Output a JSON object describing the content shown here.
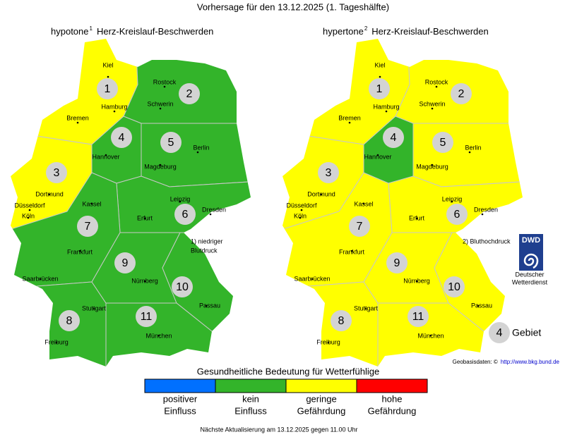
{
  "title": "Vorhersage für den 13.12.2025 (1. Tageshälfte)",
  "cities": [
    "Kiel",
    "Rostock",
    "Hamburg",
    "Schwerin",
    "Bremen",
    "Hannover",
    "Berlin",
    "Magdeburg",
    "Dortmund",
    "Düsseldorf",
    "Köln",
    "Kassel",
    "Leipzig",
    "Dresden",
    "Erfurt",
    "Frankfurt",
    "Saarbrücken",
    "Nürnberg",
    "Passau",
    "Stuttgart",
    "München",
    "Freiburg"
  ],
  "maps": [
    {
      "heading": "hypotone",
      "footnote_mark": "1",
      "heading_rest": "Herz-Kreislauf-Beschwerden",
      "regions": [
        {
          "number": 1,
          "color": "#ffff00"
        },
        {
          "number": 2,
          "color": "#33b42a"
        },
        {
          "number": 3,
          "color": "#ffff00"
        },
        {
          "number": 4,
          "color": "#33b42a"
        },
        {
          "number": 5,
          "color": "#33b42a"
        },
        {
          "number": 6,
          "color": "#33b42a"
        },
        {
          "number": 7,
          "color": "#33b42a"
        },
        {
          "number": 8,
          "color": "#33b42a"
        },
        {
          "number": 9,
          "color": "#33b42a"
        },
        {
          "number": 10,
          "color": "#33b42a"
        },
        {
          "number": 11,
          "color": "#33b42a"
        }
      ],
      "note": [
        "1) niedriger",
        "Blutdruck"
      ]
    },
    {
      "heading": "hypertone",
      "footnote_mark": "2",
      "heading_rest": "Herz-Kreislauf-Beschwerden",
      "regions": [
        {
          "number": 1,
          "color": "#ffff00"
        },
        {
          "number": 2,
          "color": "#ffff00"
        },
        {
          "number": 3,
          "color": "#ffff00"
        },
        {
          "number": 4,
          "color": "#33b42a"
        },
        {
          "number": 5,
          "color": "#ffff00"
        },
        {
          "number": 6,
          "color": "#ffff00"
        },
        {
          "number": 7,
          "color": "#ffff00"
        },
        {
          "number": 8,
          "color": "#ffff00"
        },
        {
          "number": 9,
          "color": "#ffff00"
        },
        {
          "number": 10,
          "color": "#ffff00"
        },
        {
          "number": 11,
          "color": "#ffff00"
        }
      ],
      "note": [
        "2) Bluthochdruck"
      ]
    }
  ],
  "logo": {
    "abbr": "DWD",
    "lines": [
      "Deutscher",
      "Wetterdienst"
    ]
  },
  "region_key": {
    "number": 4,
    "label": "Gebiet"
  },
  "source": {
    "label": "Geobasisdaten: ©",
    "link": "http://www.bkg.bund.de"
  },
  "legend": {
    "title": "Gesundheitliche Bedeutung für Wetterfühlige",
    "items": [
      {
        "color": "#0070ff",
        "label": [
          "positiver",
          "Einfluss"
        ]
      },
      {
        "color": "#33b42a",
        "label": [
          "kein",
          "Einfluss"
        ]
      },
      {
        "color": "#ffff00",
        "label": [
          "geringe",
          "Gefährdung"
        ]
      },
      {
        "color": "#ff0000",
        "label": [
          "hohe",
          "Gefährdung"
        ]
      }
    ]
  },
  "footer": "Nächste Aktualisierung am 13.12.2025 gegen 11.00 Uhr"
}
